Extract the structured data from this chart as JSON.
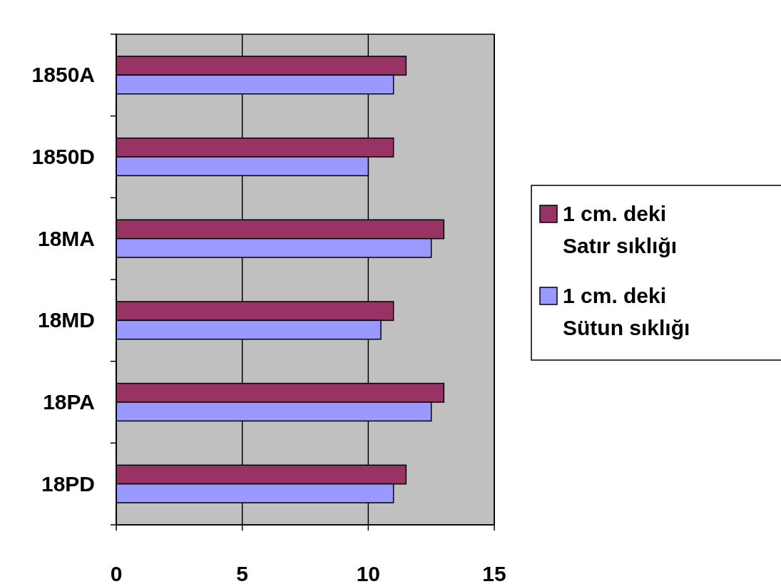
{
  "chart_data": {
    "type": "bar",
    "orientation": "horizontal",
    "categories": [
      "1850A",
      "1850D",
      "18MA",
      "18MD",
      "18PA",
      "18PD"
    ],
    "series": [
      {
        "name": "1 cm. deki Satır sıklığı",
        "color": "#993366",
        "values": [
          11.5,
          11,
          13,
          11,
          13,
          11.5
        ]
      },
      {
        "name": "1 cm. deki Sütun sıklığı",
        "color": "#9999ff",
        "values": [
          11,
          10,
          12.5,
          10.5,
          12.5,
          11
        ]
      }
    ],
    "xlim": [
      0,
      15
    ],
    "xticks": [
      0,
      5,
      10,
      15
    ],
    "grid": "x",
    "legend": "right"
  }
}
